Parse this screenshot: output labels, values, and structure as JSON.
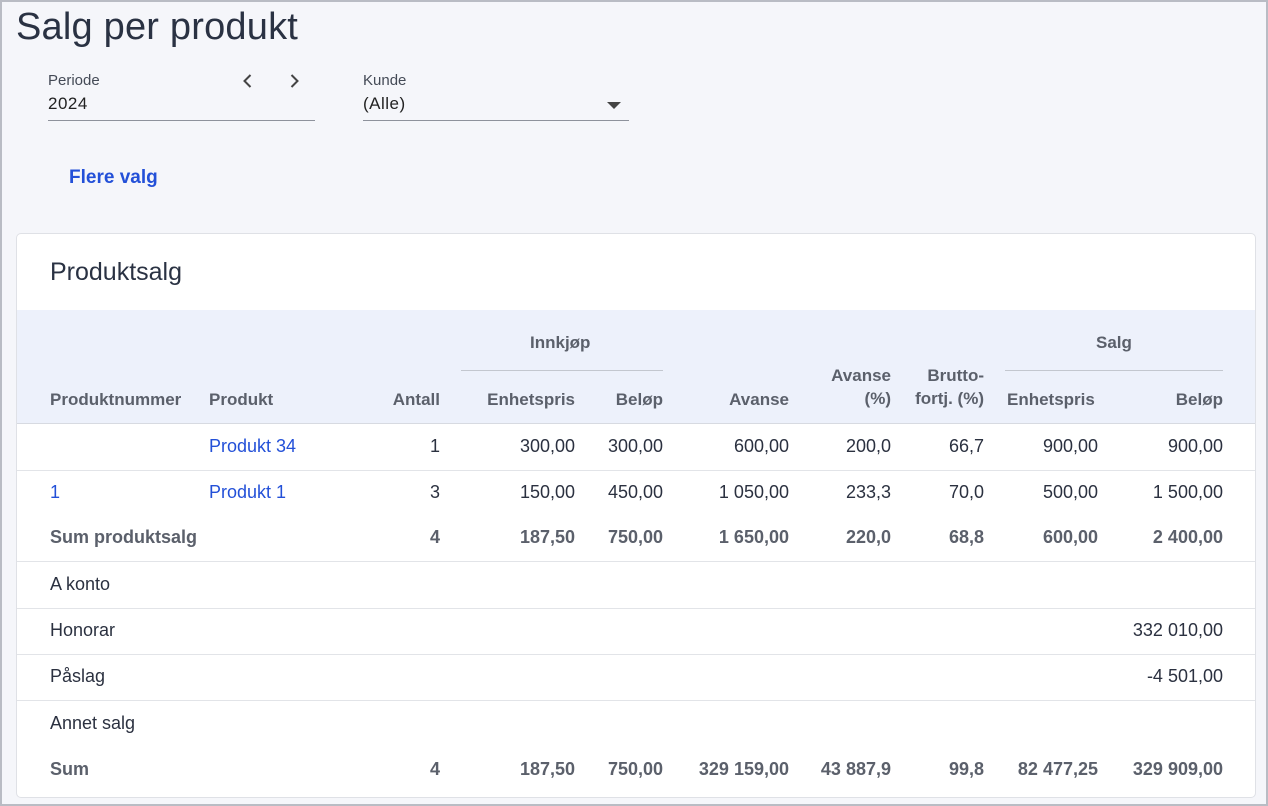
{
  "page": {
    "title": "Salg per produkt"
  },
  "filters": {
    "periode": {
      "label": "Periode",
      "value": "2024"
    },
    "kunde": {
      "label": "Kunde",
      "value": "(Alle)"
    },
    "more_label": "Flere valg"
  },
  "card": {
    "title": "Produktsalg",
    "headers": {
      "group_innkjop": "Innkjøp",
      "group_salg": "Salg",
      "produktnummer": "Produktnummer",
      "produkt": "Produkt",
      "antall": "Antall",
      "innkjop_enhetspris": "Enhetspris",
      "innkjop_belop": "Beløp",
      "avanse": "Avanse",
      "avanse_pct_1": "Avanse",
      "avanse_pct_2": "(%)",
      "brutto_1": "Brutto-",
      "brutto_2": "fortj. (%)",
      "salg_enhetspris": "Enhetspris",
      "salg_belop": "Beløp"
    },
    "rows": [
      {
        "produktnummer": "",
        "produkt": "Produkt 34",
        "antall": "1",
        "innkjop_enhetspris": "300,00",
        "innkjop_belop": "300,00",
        "avanse": "600,00",
        "avanse_pct": "200,0",
        "brutto": "66,7",
        "salg_enhetspris": "900,00",
        "salg_belop": "900,00"
      },
      {
        "produktnummer": "1",
        "produkt": "Produkt 1",
        "antall": "3",
        "innkjop_enhetspris": "150,00",
        "innkjop_belop": "450,00",
        "avanse": "1 050,00",
        "avanse_pct": "233,3",
        "brutto": "70,0",
        "salg_enhetspris": "500,00",
        "salg_belop": "1 500,00"
      }
    ],
    "sum_produktsalg": {
      "label": "Sum produktsalg",
      "antall": "4",
      "innkjop_enhetspris": "187,50",
      "innkjop_belop": "750,00",
      "avanse": "1 650,00",
      "avanse_pct": "220,0",
      "brutto": "68,8",
      "salg_enhetspris": "600,00",
      "salg_belop": "2 400,00"
    },
    "a_konto": {
      "label": "A konto",
      "salg_belop": ""
    },
    "honorar": {
      "label": "Honorar",
      "salg_belop": "332 010,00"
    },
    "paslag": {
      "label": "Påslag",
      "salg_belop": "-4 501,00"
    },
    "annet_salg": {
      "label": "Annet salg",
      "salg_belop": ""
    },
    "sum": {
      "label": "Sum",
      "antall": "4",
      "innkjop_enhetspris": "187,50",
      "innkjop_belop": "750,00",
      "avanse": "329 159,00",
      "avanse_pct": "43 887,9",
      "brutto": "99,8",
      "salg_enhetspris": "82 477,25",
      "salg_belop": "329 909,00"
    }
  }
}
